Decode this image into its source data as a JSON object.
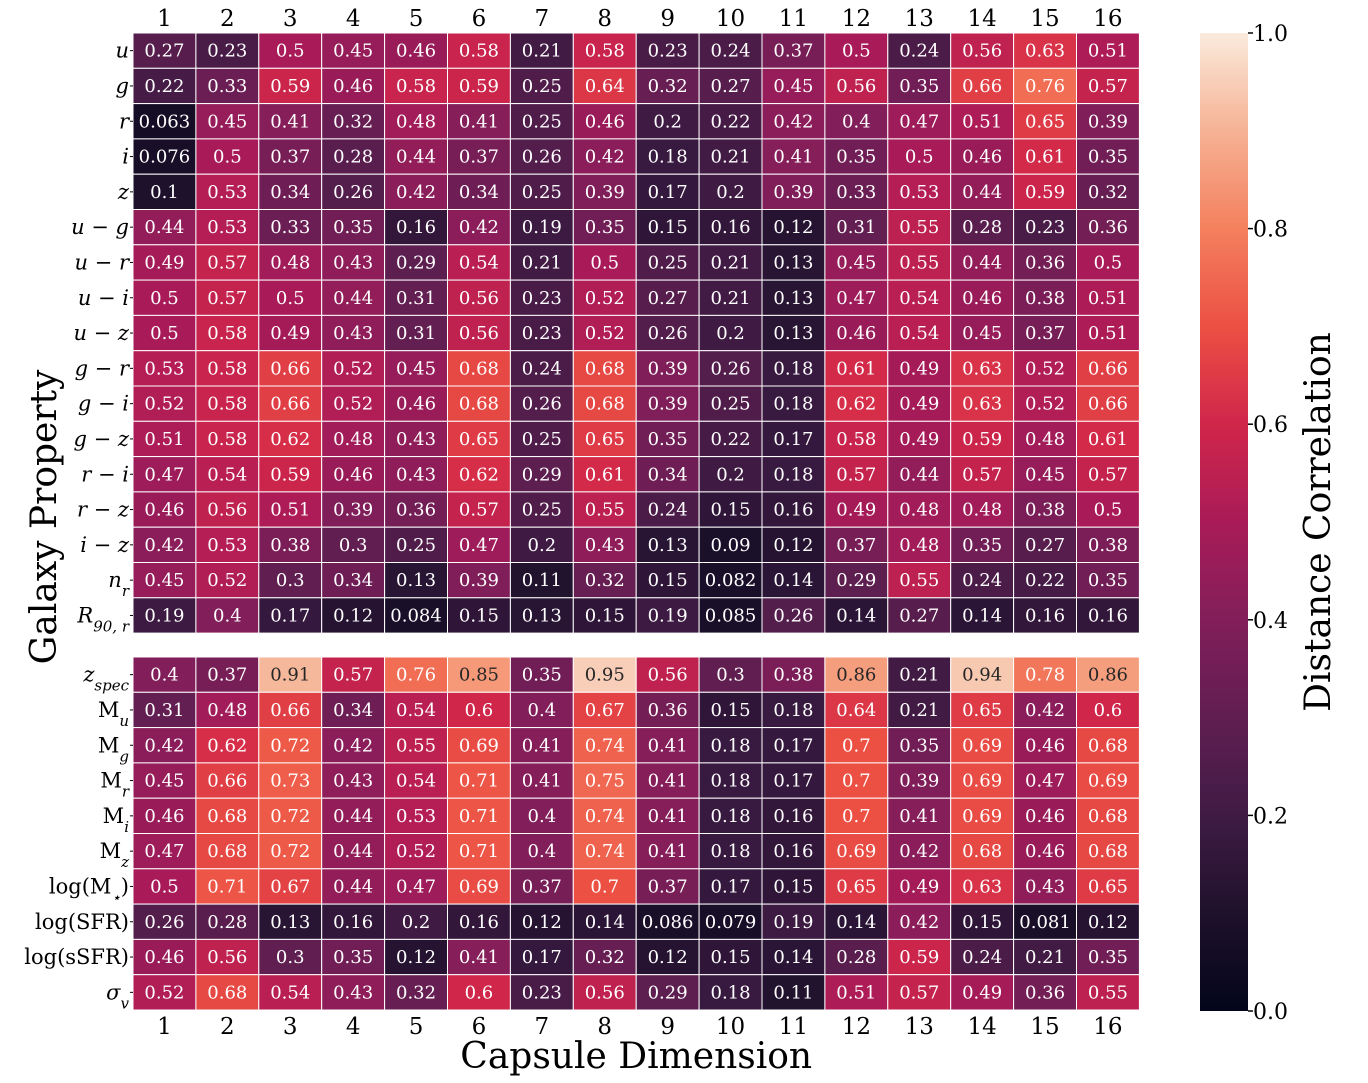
{
  "chart_data": {
    "type": "heatmap",
    "title": "",
    "xlabel": "Capsule Dimension",
    "ylabel": "Galaxy Property",
    "colorbar_label": "Distance Correlation",
    "colorbar_range": [
      0.0,
      1.0
    ],
    "colorbar_ticks": [
      "0.0",
      "0.2",
      "0.4",
      "0.6",
      "0.8",
      "1.0"
    ],
    "colormap": "rocket",
    "x_categories": [
      "1",
      "2",
      "3",
      "4",
      "5",
      "6",
      "7",
      "8",
      "9",
      "10",
      "11",
      "12",
      "13",
      "14",
      "15",
      "16"
    ],
    "panels": [
      {
        "rows": [
          {
            "label": "u",
            "label_html": "u",
            "values": [
              0.27,
              0.23,
              0.5,
              0.45,
              0.46,
              0.58,
              0.21,
              0.58,
              0.23,
              0.24,
              0.37,
              0.5,
              0.24,
              0.56,
              0.63,
              0.51
            ]
          },
          {
            "label": "g",
            "label_html": "g",
            "values": [
              0.22,
              0.33,
              0.59,
              0.46,
              0.58,
              0.59,
              0.25,
              0.64,
              0.32,
              0.27,
              0.45,
              0.56,
              0.35,
              0.66,
              0.76,
              0.57
            ]
          },
          {
            "label": "r",
            "label_html": "r",
            "values": [
              0.063,
              0.45,
              0.41,
              0.32,
              0.48,
              0.41,
              0.25,
              0.46,
              0.2,
              0.22,
              0.42,
              0.4,
              0.47,
              0.51,
              0.65,
              0.39
            ]
          },
          {
            "label": "i",
            "label_html": "i",
            "values": [
              0.076,
              0.5,
              0.37,
              0.28,
              0.44,
              0.37,
              0.26,
              0.42,
              0.18,
              0.21,
              0.41,
              0.35,
              0.5,
              0.46,
              0.61,
              0.35
            ]
          },
          {
            "label": "z",
            "label_html": "z",
            "values": [
              0.1,
              0.53,
              0.34,
              0.26,
              0.42,
              0.34,
              0.25,
              0.39,
              0.17,
              0.2,
              0.39,
              0.33,
              0.53,
              0.44,
              0.59,
              0.32
            ]
          },
          {
            "label": "u − g",
            "label_html": "u − g",
            "values": [
              0.44,
              0.53,
              0.33,
              0.35,
              0.16,
              0.42,
              0.19,
              0.35,
              0.15,
              0.16,
              0.12,
              0.31,
              0.55,
              0.28,
              0.23,
              0.36
            ]
          },
          {
            "label": "u − r",
            "label_html": "u − r",
            "values": [
              0.49,
              0.57,
              0.48,
              0.43,
              0.29,
              0.54,
              0.21,
              0.5,
              0.25,
              0.21,
              0.13,
              0.45,
              0.55,
              0.44,
              0.36,
              0.5
            ]
          },
          {
            "label": "u − i",
            "label_html": "u − i",
            "values": [
              0.5,
              0.57,
              0.5,
              0.44,
              0.31,
              0.56,
              0.23,
              0.52,
              0.27,
              0.21,
              0.13,
              0.47,
              0.54,
              0.46,
              0.38,
              0.51
            ]
          },
          {
            "label": "u − z",
            "label_html": "u − z",
            "values": [
              0.5,
              0.58,
              0.49,
              0.43,
              0.31,
              0.56,
              0.23,
              0.52,
              0.26,
              0.2,
              0.13,
              0.46,
              0.54,
              0.45,
              0.37,
              0.51
            ]
          },
          {
            "label": "g − r",
            "label_html": "g − r",
            "values": [
              0.53,
              0.58,
              0.66,
              0.52,
              0.45,
              0.68,
              0.24,
              0.68,
              0.39,
              0.26,
              0.18,
              0.61,
              0.49,
              0.63,
              0.52,
              0.66
            ]
          },
          {
            "label": "g − i",
            "label_html": "g − i",
            "values": [
              0.52,
              0.58,
              0.66,
              0.52,
              0.46,
              0.68,
              0.26,
              0.68,
              0.39,
              0.25,
              0.18,
              0.62,
              0.49,
              0.63,
              0.52,
              0.66
            ]
          },
          {
            "label": "g − z",
            "label_html": "g − z",
            "values": [
              0.51,
              0.58,
              0.62,
              0.48,
              0.43,
              0.65,
              0.25,
              0.65,
              0.35,
              0.22,
              0.17,
              0.58,
              0.49,
              0.59,
              0.48,
              0.61
            ]
          },
          {
            "label": "r − i",
            "label_html": "r − i",
            "values": [
              0.47,
              0.54,
              0.59,
              0.46,
              0.43,
              0.62,
              0.29,
              0.61,
              0.34,
              0.2,
              0.18,
              0.57,
              0.44,
              0.57,
              0.45,
              0.57
            ]
          },
          {
            "label": "r − z",
            "label_html": "r − z",
            "values": [
              0.46,
              0.56,
              0.51,
              0.39,
              0.36,
              0.57,
              0.25,
              0.55,
              0.24,
              0.15,
              0.16,
              0.49,
              0.48,
              0.48,
              0.38,
              0.5
            ]
          },
          {
            "label": "i − z",
            "label_html": "i − z",
            "values": [
              0.42,
              0.53,
              0.38,
              0.3,
              0.25,
              0.47,
              0.2,
              0.43,
              0.13,
              0.09,
              0.12,
              0.37,
              0.48,
              0.35,
              0.27,
              0.38
            ]
          },
          {
            "label": "n_r",
            "label_html": "n<tspan baseline-shift='sub' font-size='15'>r</tspan>",
            "values": [
              0.45,
              0.52,
              0.3,
              0.34,
              0.13,
              0.39,
              0.11,
              0.32,
              0.15,
              0.082,
              0.14,
              0.29,
              0.55,
              0.24,
              0.22,
              0.35
            ]
          },
          {
            "label": "R_90,r",
            "label_html": "R<tspan baseline-shift='sub' font-size='15'>90, r</tspan>",
            "values": [
              0.19,
              0.4,
              0.17,
              0.12,
              0.084,
              0.15,
              0.13,
              0.15,
              0.19,
              0.085,
              0.26,
              0.14,
              0.27,
              0.14,
              0.16,
              0.16
            ]
          }
        ]
      },
      {
        "rows": [
          {
            "label": "z_spec",
            "label_html": "z<tspan baseline-shift='sub' font-size='15'>spec</tspan>",
            "values": [
              0.4,
              0.37,
              0.91,
              0.57,
              0.76,
              0.85,
              0.35,
              0.95,
              0.56,
              0.3,
              0.38,
              0.86,
              0.21,
              0.94,
              0.78,
              0.86
            ]
          },
          {
            "label": "M_u",
            "label_html": "<tspan font-style='normal'>M</tspan><tspan baseline-shift='sub' font-size='15'>u</tspan>",
            "values": [
              0.31,
              0.48,
              0.66,
              0.34,
              0.54,
              0.6,
              0.4,
              0.67,
              0.36,
              0.15,
              0.18,
              0.64,
              0.21,
              0.65,
              0.42,
              0.6
            ]
          },
          {
            "label": "M_g",
            "label_html": "<tspan font-style='normal'>M</tspan><tspan baseline-shift='sub' font-size='15'>g</tspan>",
            "values": [
              0.42,
              0.62,
              0.72,
              0.42,
              0.55,
              0.69,
              0.41,
              0.74,
              0.41,
              0.18,
              0.17,
              0.7,
              0.35,
              0.69,
              0.46,
              0.68
            ]
          },
          {
            "label": "M_r",
            "label_html": "<tspan font-style='normal'>M</tspan><tspan baseline-shift='sub' font-size='15'>r</tspan>",
            "values": [
              0.45,
              0.66,
              0.73,
              0.43,
              0.54,
              0.71,
              0.41,
              0.75,
              0.41,
              0.18,
              0.17,
              0.7,
              0.39,
              0.69,
              0.47,
              0.69
            ]
          },
          {
            "label": "M_i",
            "label_html": "<tspan font-style='normal'>M</tspan><tspan baseline-shift='sub' font-size='15'>i</tspan>",
            "values": [
              0.46,
              0.68,
              0.72,
              0.44,
              0.53,
              0.71,
              0.4,
              0.74,
              0.41,
              0.18,
              0.16,
              0.7,
              0.41,
              0.69,
              0.46,
              0.68
            ]
          },
          {
            "label": "M_z",
            "label_html": "<tspan font-style='normal'>M</tspan><tspan baseline-shift='sub' font-size='15'>z</tspan>",
            "values": [
              0.47,
              0.68,
              0.72,
              0.44,
              0.52,
              0.71,
              0.4,
              0.74,
              0.41,
              0.18,
              0.16,
              0.69,
              0.42,
              0.68,
              0.46,
              0.68
            ]
          },
          {
            "label": "log(M⋆)",
            "label_html": "<tspan font-style='normal'>log(M</tspan><tspan baseline-shift='sub' font-size='15'>⋆</tspan><tspan font-style='normal'>)</tspan>",
            "values": [
              0.5,
              0.71,
              0.67,
              0.44,
              0.47,
              0.69,
              0.37,
              0.7,
              0.37,
              0.17,
              0.15,
              0.65,
              0.49,
              0.63,
              0.43,
              0.65
            ]
          },
          {
            "label": "log(SFR)",
            "label_html": "<tspan font-style='normal'>log(SFR)</tspan>",
            "values": [
              0.26,
              0.28,
              0.13,
              0.16,
              0.2,
              0.16,
              0.12,
              0.14,
              0.086,
              0.079,
              0.19,
              0.14,
              0.42,
              0.15,
              0.081,
              0.12
            ]
          },
          {
            "label": "log(sSFR)",
            "label_html": "<tspan font-style='normal'>log(sSFR)</tspan>",
            "values": [
              0.46,
              0.56,
              0.3,
              0.35,
              0.12,
              0.41,
              0.17,
              0.32,
              0.12,
              0.15,
              0.14,
              0.28,
              0.59,
              0.24,
              0.21,
              0.35
            ]
          },
          {
            "label": "σ_v",
            "label_html": "σ<tspan baseline-shift='sub' font-size='15'>v</tspan>",
            "values": [
              0.52,
              0.68,
              0.54,
              0.43,
              0.32,
              0.6,
              0.23,
              0.56,
              0.29,
              0.18,
              0.11,
              0.51,
              0.57,
              0.49,
              0.36,
              0.55
            ]
          }
        ]
      }
    ],
    "grid": false,
    "legend": "colorbar-right"
  }
}
